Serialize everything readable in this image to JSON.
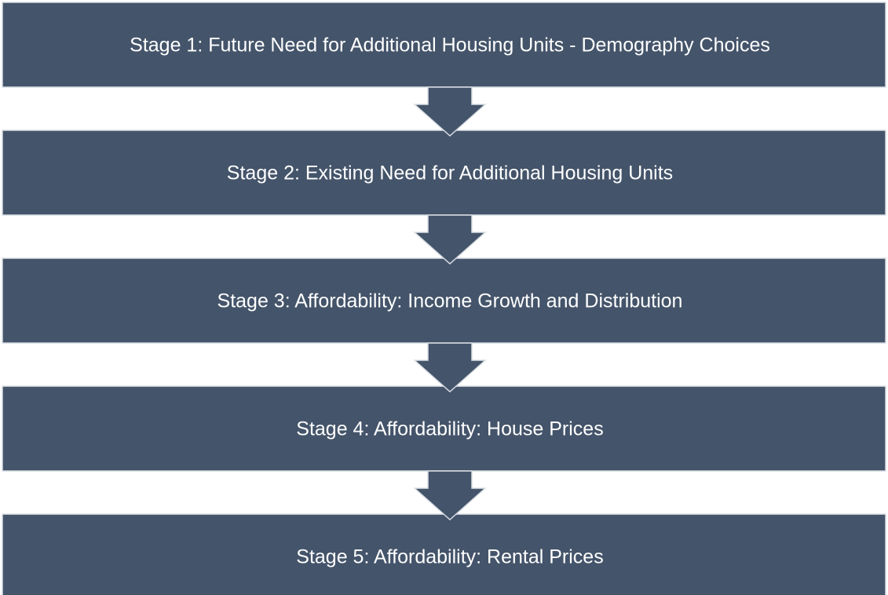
{
  "stages": [
    {
      "label": "Stage 1: Future Need for Additional Housing Units - Demography Choices"
    },
    {
      "label": "Stage 2: Existing Need for Additional Housing Units"
    },
    {
      "label": "Stage 3: Affordability: Income Growth and Distribution"
    },
    {
      "label": "Stage 4: Affordability: House Prices"
    },
    {
      "label": "Stage 5: Affordability: Rental Prices"
    }
  ]
}
